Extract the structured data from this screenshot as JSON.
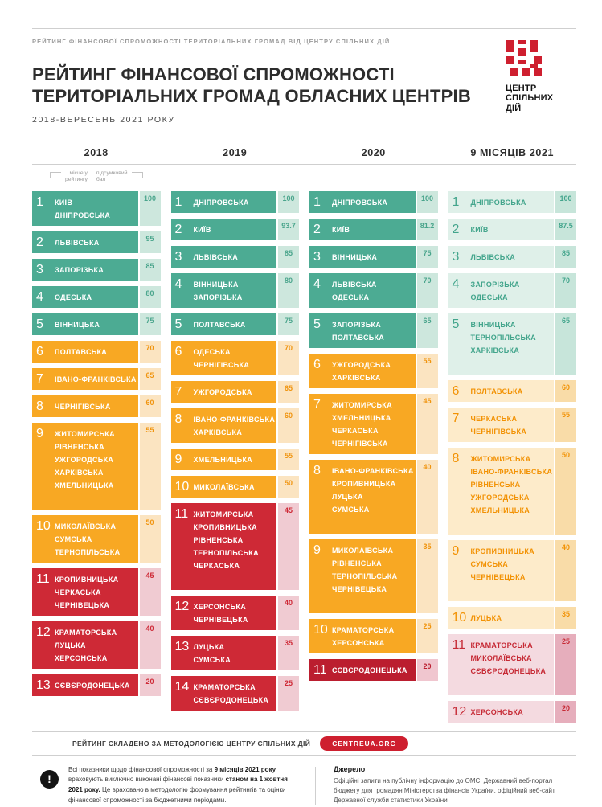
{
  "header": {
    "topline": "РЕЙТИНГ ФІНАНСОВОЇ СПРОМОЖНОСТІ  ТЕРИТОРІАЛЬНИХ ГРОМАД ВІД ЦЕНТРУ СПІЛЬНИХ ДІЙ",
    "title_line1": "РЕЙТИНГ ФІНАНСОВОЇ СПРОМОЖНОСТІ",
    "title_line2": "ТЕРИТОРІАЛЬНИХ ГРОМАД ОБЛАСНИХ ЦЕНТРІВ",
    "subtitle": "2018-ВЕРЕСЕНЬ 2021 РОКУ",
    "logo_line1": "ЦЕНТР",
    "logo_line2": "СПІЛЬНИХ",
    "logo_line3": "ДІЙ"
  },
  "legend": {
    "place_line1": "місце у",
    "place_line2": "рейтингу",
    "score_line1": "підсумковий",
    "score_line2": "бал"
  },
  "chart_data": {
    "type": "table",
    "title": "РЕЙТИНГ ФІНАНСОВОЇ СПРОМОЖНОСТІ ТЕРИТОРІАЛЬНИХ ГРОМАД ОБЛАСНИХ ЦЕНТРІВ",
    "period": "2018-ВЕРЕСЕНЬ 2021 РОКУ",
    "score_scale": [
      0,
      100
    ],
    "columns": [
      {
        "label": "2018",
        "rows": [
          {
            "rank": "1",
            "names": [
              "КИЇВ",
              "ДНІПРОВСЬКА"
            ],
            "score": "100",
            "tier": "green"
          },
          {
            "rank": "2",
            "names": [
              "ЛЬВІВСЬКА"
            ],
            "score": "95",
            "tier": "green"
          },
          {
            "rank": "3",
            "names": [
              "ЗАПОРІЗЬКА"
            ],
            "score": "85",
            "tier": "green"
          },
          {
            "rank": "4",
            "names": [
              "ОДЕСЬКА"
            ],
            "score": "80",
            "tier": "green"
          },
          {
            "rank": "5",
            "names": [
              "ВІННИЦЬКА"
            ],
            "score": "75",
            "tier": "green"
          },
          {
            "rank": "6",
            "names": [
              "ПОЛТАВСЬКА"
            ],
            "score": "70",
            "tier": "orange"
          },
          {
            "rank": "7",
            "names": [
              "ІВАНО-ФРАНКІВСЬКА"
            ],
            "score": "65",
            "tier": "orange"
          },
          {
            "rank": "8",
            "names": [
              "ЧЕРНІГІВСЬКА"
            ],
            "score": "60",
            "tier": "orange"
          },
          {
            "rank": "9",
            "names": [
              "ЖИТОМИРСЬКА",
              "РІВНЕНСЬКА",
              "УЖГОРОДСЬКА",
              "ХАРКІВСЬКА",
              "ХМЕЛЬНИЦЬКА"
            ],
            "score": "55",
            "tier": "orange",
            "spacer": true
          },
          {
            "rank": "10",
            "names": [
              "МИКОЛАЇВСЬКА",
              "СУМСЬКА",
              "ТЕРНОПІЛЬСЬКА"
            ],
            "score": "50",
            "tier": "orange"
          },
          {
            "rank": "11",
            "names": [
              "КРОПИВНИЦЬКА",
              "ЧЕРКАСЬКА",
              "ЧЕРНІВЕЦЬКА"
            ],
            "score": "45",
            "tier": "red"
          },
          {
            "rank": "12",
            "names": [
              "КРАМАТОРСЬКА",
              "ЛУЦЬКА",
              "ХЕРСОНСЬКА"
            ],
            "score": "40",
            "tier": "red"
          },
          {
            "rank": "13",
            "names": [
              "СЄВЄРОДОНЕЦЬКА"
            ],
            "score": "20",
            "tier": "red"
          }
        ]
      },
      {
        "label": "2019",
        "rows": [
          {
            "rank": "1",
            "names": [
              "ДНІПРОВСЬКА"
            ],
            "score": "100",
            "tier": "green"
          },
          {
            "rank": "2",
            "names": [
              "КИЇВ"
            ],
            "score": "93.7",
            "tier": "green"
          },
          {
            "rank": "3",
            "names": [
              "ЛЬВІВСЬКА"
            ],
            "score": "85",
            "tier": "green"
          },
          {
            "rank": "4",
            "names": [
              "ВІННИЦЬКА",
              "ЗАПОРІЗЬКА"
            ],
            "score": "80",
            "tier": "green"
          },
          {
            "rank": "5",
            "names": [
              "ПОЛТАВСЬКА"
            ],
            "score": "75",
            "tier": "green"
          },
          {
            "rank": "6",
            "names": [
              "ОДЕСЬКА",
              "ЧЕРНІГІВСЬКА"
            ],
            "score": "70",
            "tier": "orange"
          },
          {
            "rank": "7",
            "names": [
              "УЖГОРОДСЬКА"
            ],
            "score": "65",
            "tier": "orange"
          },
          {
            "rank": "8",
            "names": [
              "ІВАНО-ФРАНКІВСЬКА",
              "ХАРКІВСЬКА"
            ],
            "score": "60",
            "tier": "orange"
          },
          {
            "rank": "9",
            "names": [
              "ХМЕЛЬНИЦЬКА"
            ],
            "score": "55",
            "tier": "orange"
          },
          {
            "rank": "10",
            "names": [
              "МИКОЛАЇВСЬКА"
            ],
            "score": "50",
            "tier": "orange"
          },
          {
            "rank": "11",
            "names": [
              "ЖИТОМИРСЬКА",
              "КРОПИВНИЦЬКА",
              "РІВНЕНСЬКА",
              "ТЕРНОПІЛЬСЬКА",
              "ЧЕРКАСЬКА"
            ],
            "score": "45",
            "tier": "red",
            "spacer": true
          },
          {
            "rank": "12",
            "names": [
              "ХЕРСОНСЬКА",
              "ЧЕРНІВЕЦЬКА"
            ],
            "score": "40",
            "tier": "red"
          },
          {
            "rank": "13",
            "names": [
              "ЛУЦЬКА",
              "СУМСЬКА"
            ],
            "score": "35",
            "tier": "red"
          },
          {
            "rank": "14",
            "names": [
              "КРАМАТОРСЬКА",
              "СЄВЄРОДОНЕЦЬКА"
            ],
            "score": "25",
            "tier": "red"
          }
        ]
      },
      {
        "label": "2020",
        "rows": [
          {
            "rank": "1",
            "names": [
              "ДНІПРОВСЬКА"
            ],
            "score": "100",
            "tier": "green"
          },
          {
            "rank": "2",
            "names": [
              "КИЇВ"
            ],
            "score": "81.2",
            "tier": "green"
          },
          {
            "rank": "3",
            "names": [
              "ВІННИЦЬКА"
            ],
            "score": "75",
            "tier": "green"
          },
          {
            "rank": "4",
            "names": [
              "ЛЬВІВСЬКА",
              "ОДЕСЬКА"
            ],
            "score": "70",
            "tier": "green"
          },
          {
            "rank": "5",
            "names": [
              "ЗАПОРІЗЬКА",
              "ПОЛТАВСЬКА"
            ],
            "score": "65",
            "tier": "green"
          },
          {
            "rank": "6",
            "names": [
              "УЖГОРОДСЬКА",
              "ХАРКІВСЬКА"
            ],
            "score": "55",
            "tier": "orange"
          },
          {
            "rank": "7",
            "names": [
              "ЖИТОМИРСЬКА",
              "ХМЕЛЬНИЦЬКА",
              "ЧЕРКАСЬКА",
              "ЧЕРНІГІВСЬКА"
            ],
            "score": "45",
            "tier": "orange"
          },
          {
            "rank": "8",
            "names": [
              "ІВАНО-ФРАНКІВСЬКА",
              "КРОПИВНИЦЬКА",
              "ЛУЦЬКА",
              "СУМСЬКА"
            ],
            "score": "40",
            "tier": "orange",
            "spacer": true
          },
          {
            "rank": "9",
            "names": [
              "МИКОЛАЇВСЬКА",
              "РІВНЕНСЬКА",
              "ТЕРНОПІЛЬСЬКА",
              "ЧЕРНІВЕЦЬКА"
            ],
            "score": "35",
            "tier": "orange",
            "spacer": true
          },
          {
            "rank": "10",
            "names": [
              "КРАМАТОРСЬКА",
              "ХЕРСОНСЬКА"
            ],
            "score": "25",
            "tier": "orange"
          },
          {
            "rank": "11",
            "names": [
              "СЄВЄРОДОНЕЦЬКА"
            ],
            "score": "20",
            "tier": "red_dark"
          }
        ]
      },
      {
        "label": "9 МІСЯЦІВ 2021",
        "rows": [
          {
            "rank": "1",
            "names": [
              "ДНІПРОВСЬКА"
            ],
            "score": "100",
            "tier": "green_pale"
          },
          {
            "rank": "2",
            "names": [
              "КИЇВ"
            ],
            "score": "87.5",
            "tier": "green_pale"
          },
          {
            "rank": "3",
            "names": [
              "ЛЬВІВСЬКА"
            ],
            "score": "85",
            "tier": "green_pale"
          },
          {
            "rank": "4",
            "names": [
              "ЗАПОРІЗЬКА",
              "ОДЕСЬКА"
            ],
            "score": "70",
            "tier": "green_pale"
          },
          {
            "rank": "5",
            "names": [
              "ВІННИЦЬКА",
              "ТЕРНОПІЛЬСЬКА",
              "ХАРКІВСЬКА"
            ],
            "score": "65",
            "tier": "green_pale",
            "spacer": true
          },
          {
            "rank": "6",
            "names": [
              "ПОЛТАВСЬКА"
            ],
            "score": "60",
            "tier": "orange_pale"
          },
          {
            "rank": "7",
            "names": [
              "ЧЕРКАСЬКА",
              "ЧЕРНІГІВСЬКА"
            ],
            "score": "55",
            "tier": "orange_pale"
          },
          {
            "rank": "8",
            "names": [
              "ЖИТОМИРСЬКА",
              "ІВАНО-ФРАНКІВСЬКА",
              "РІВНЕНСЬКА",
              "УЖГОРОДСЬКА",
              "ХМЕЛЬНИЦЬКА"
            ],
            "score": "50",
            "tier": "orange_pale",
            "spacer": true
          },
          {
            "rank": "9",
            "names": [
              "КРОПИВНИЦЬКА",
              "СУМСЬКА",
              "ЧЕРНІВЕЦЬКА"
            ],
            "score": "40",
            "tier": "orange_pale",
            "spacer": true
          },
          {
            "rank": "10",
            "names": [
              "ЛУЦЬКА"
            ],
            "score": "35",
            "tier": "orange_pale"
          },
          {
            "rank": "11",
            "names": [
              "КРАМАТОРСЬКА",
              "МИКОЛАЇВСЬКА",
              "СЄВЄРОДОНЕЦЬКА"
            ],
            "score": "25",
            "tier": "red_pale",
            "spacer": true
          },
          {
            "rank": "12",
            "names": [
              "ХЕРСОНСЬКА"
            ],
            "score": "20",
            "tier": "red_pale"
          }
        ]
      }
    ]
  },
  "footer": {
    "method_text": "РЕЙТИНГ СКЛАДЕНО ЗА МЕТОДОЛОГІЄЮ ЦЕНТРУ СПІЛЬНИХ ДІЙ",
    "site_button": "CENTREUA.ORG",
    "disclaimer_segments": [
      {
        "text": "Всі показники щодо фінансової спроможності за ",
        "bold": false
      },
      {
        "text": "9 місяців 2021 року",
        "bold": true
      },
      {
        "text": " враховують виключно виконані фінансові показники ",
        "bold": false
      },
      {
        "text": "станом на 1 жовтня 2021 року.",
        "bold": true
      },
      {
        "text": " Це враховано в методологію формування рейтингів та оцінки фінансової спроможності за бюджетними періодами.",
        "bold": false
      }
    ],
    "source_title": "Джерело",
    "source_text": "Офіційні запити на публічну інформацію до ОМС, Державний веб-портал бюджету для громадян Міністерства фінансів України, офіційний веб-сайт Державної служби статистики України"
  },
  "colors": {
    "brand_red": "#ce1f2f",
    "title_text": "#2d2d2d",
    "muted_text": "#9b9b9b",
    "tiers": {
      "green": {
        "bg": "#4cab93",
        "fg": "#ffffff",
        "chip_bg": "#cde7dd",
        "chip_fg": "#4aa58c"
      },
      "orange": {
        "bg": "#f8a823",
        "fg": "#ffffff",
        "chip_bg": "#fbe4c1",
        "chip_fg": "#f0940e"
      },
      "red": {
        "bg": "#ce2936",
        "fg": "#ffffff",
        "chip_bg": "#f0cbd2",
        "chip_fg": "#ce2936"
      },
      "red_dark": {
        "bg": "#bb1e2f",
        "fg": "#ffffff",
        "chip_bg": "#f0c6cf",
        "chip_fg": "#bb1e2f"
      },
      "green_pale": {
        "bg": "#dff0e9",
        "fg": "#43a58c",
        "chip_bg": "#c7e5da",
        "chip_fg": "#43a58c"
      },
      "orange_pale": {
        "bg": "#fdebca",
        "fg": "#f29204",
        "chip_bg": "#f9dca8",
        "chip_fg": "#f29204"
      },
      "red_pale": {
        "bg": "#f4dae0",
        "fg": "#c62a35",
        "chip_bg": "#e6aebc",
        "chip_fg": "#c62a35"
      }
    }
  }
}
